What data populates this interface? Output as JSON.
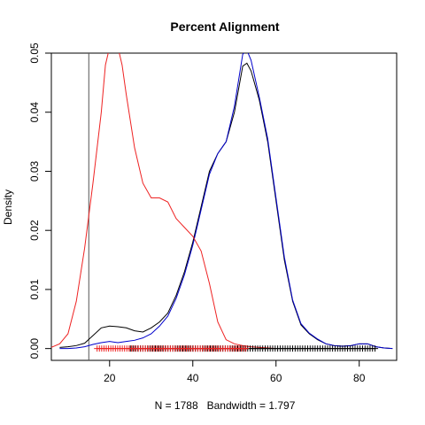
{
  "chart_data": {
    "type": "line",
    "title": "Percent Alignment",
    "xlabel": "N = 1788   Bandwidth = 1.797",
    "ylabel": "Density",
    "xlim": [
      6,
      89
    ],
    "ylim": [
      -0.002,
      0.05
    ],
    "x_ticks": [
      20,
      40,
      60,
      80
    ],
    "y_ticks": [
      0.0,
      0.01,
      0.02,
      0.03,
      0.04,
      0.05
    ],
    "y_tick_labels": [
      "0.00",
      "0.01",
      "0.02",
      "0.03",
      "0.04",
      "0.05"
    ],
    "grid": false,
    "vline": {
      "x": 15,
      "color": "#555555"
    },
    "series": [
      {
        "color": "#000000",
        "points": [
          [
            8,
            0.0002
          ],
          [
            10,
            0.0003
          ],
          [
            12,
            0.0005
          ],
          [
            14,
            0.0009
          ],
          [
            16,
            0.0022
          ],
          [
            18,
            0.0035
          ],
          [
            20,
            0.0038
          ],
          [
            22,
            0.0037
          ],
          [
            24,
            0.0035
          ],
          [
            26,
            0.003
          ],
          [
            28,
            0.0028
          ],
          [
            30,
            0.0035
          ],
          [
            32,
            0.0045
          ],
          [
            34,
            0.006
          ],
          [
            36,
            0.009
          ],
          [
            38,
            0.013
          ],
          [
            40,
            0.018
          ],
          [
            42,
            0.024
          ],
          [
            44,
            0.03
          ],
          [
            46,
            0.033
          ],
          [
            48,
            0.035
          ],
          [
            50,
            0.04
          ],
          [
            52,
            0.0478
          ],
          [
            53,
            0.0483
          ],
          [
            54,
            0.047
          ],
          [
            56,
            0.042
          ],
          [
            58,
            0.035
          ],
          [
            60,
            0.025
          ],
          [
            62,
            0.015
          ],
          [
            64,
            0.008
          ],
          [
            66,
            0.004
          ],
          [
            68,
            0.0025
          ],
          [
            70,
            0.0015
          ],
          [
            72,
            0.0008
          ],
          [
            74,
            0.0005
          ],
          [
            76,
            0.0004
          ],
          [
            78,
            0.0005
          ],
          [
            80,
            0.0008
          ],
          [
            82,
            0.0008
          ],
          [
            84,
            0.0003
          ],
          [
            86,
            0.0001
          ],
          [
            88,
            0.0
          ]
        ]
      },
      {
        "color": "#0000cc",
        "points": [
          [
            8,
            0.0
          ],
          [
            10,
            0.0
          ],
          [
            12,
            0.0001
          ],
          [
            14,
            0.0003
          ],
          [
            16,
            0.0007
          ],
          [
            18,
            0.001
          ],
          [
            20,
            0.0012
          ],
          [
            22,
            0.001
          ],
          [
            24,
            0.0012
          ],
          [
            26,
            0.0014
          ],
          [
            28,
            0.0018
          ],
          [
            30,
            0.0025
          ],
          [
            32,
            0.0038
          ],
          [
            34,
            0.0055
          ],
          [
            36,
            0.0085
          ],
          [
            38,
            0.0125
          ],
          [
            40,
            0.0175
          ],
          [
            42,
            0.0235
          ],
          [
            44,
            0.0295
          ],
          [
            46,
            0.033
          ],
          [
            48,
            0.035
          ],
          [
            50,
            0.041
          ],
          [
            52,
            0.0498
          ],
          [
            53,
            0.0505
          ],
          [
            54,
            0.0488
          ],
          [
            56,
            0.0425
          ],
          [
            58,
            0.0355
          ],
          [
            60,
            0.0255
          ],
          [
            62,
            0.0155
          ],
          [
            64,
            0.0082
          ],
          [
            66,
            0.0042
          ],
          [
            68,
            0.0026
          ],
          [
            70,
            0.0016
          ],
          [
            72,
            0.0008
          ],
          [
            74,
            0.0005
          ],
          [
            76,
            0.0004
          ],
          [
            78,
            0.0005
          ],
          [
            80,
            0.0008
          ],
          [
            82,
            0.0008
          ],
          [
            84,
            0.0003
          ],
          [
            86,
            0.0001
          ],
          [
            88,
            0.0
          ]
        ]
      },
      {
        "color": "#ee2222",
        "points": [
          [
            6,
            0.0002
          ],
          [
            8,
            0.0008
          ],
          [
            10,
            0.0025
          ],
          [
            12,
            0.008
          ],
          [
            14,
            0.017
          ],
          [
            16,
            0.028
          ],
          [
            18,
            0.04
          ],
          [
            19,
            0.048
          ],
          [
            20,
            0.051
          ],
          [
            21,
            0.0515
          ],
          [
            22,
            0.051
          ],
          [
            23,
            0.048
          ],
          [
            24,
            0.043
          ],
          [
            26,
            0.034
          ],
          [
            28,
            0.028
          ],
          [
            30,
            0.0255
          ],
          [
            32,
            0.0255
          ],
          [
            34,
            0.0248
          ],
          [
            36,
            0.022
          ],
          [
            38,
            0.0205
          ],
          [
            40,
            0.019
          ],
          [
            42,
            0.0165
          ],
          [
            44,
            0.011
          ],
          [
            46,
            0.0045
          ],
          [
            48,
            0.0015
          ],
          [
            50,
            0.0008
          ],
          [
            52,
            0.0005
          ],
          [
            54,
            0.0003
          ],
          [
            56,
            0.0002
          ],
          [
            58,
            0.0001
          ],
          [
            60,
            0.0
          ]
        ]
      }
    ],
    "rugs": [
      {
        "color": "#000000",
        "from": 25,
        "to": 84,
        "step": 0.6
      },
      {
        "color": "#ee2222",
        "from": 17,
        "to": 53,
        "step": 0.55
      }
    ]
  }
}
